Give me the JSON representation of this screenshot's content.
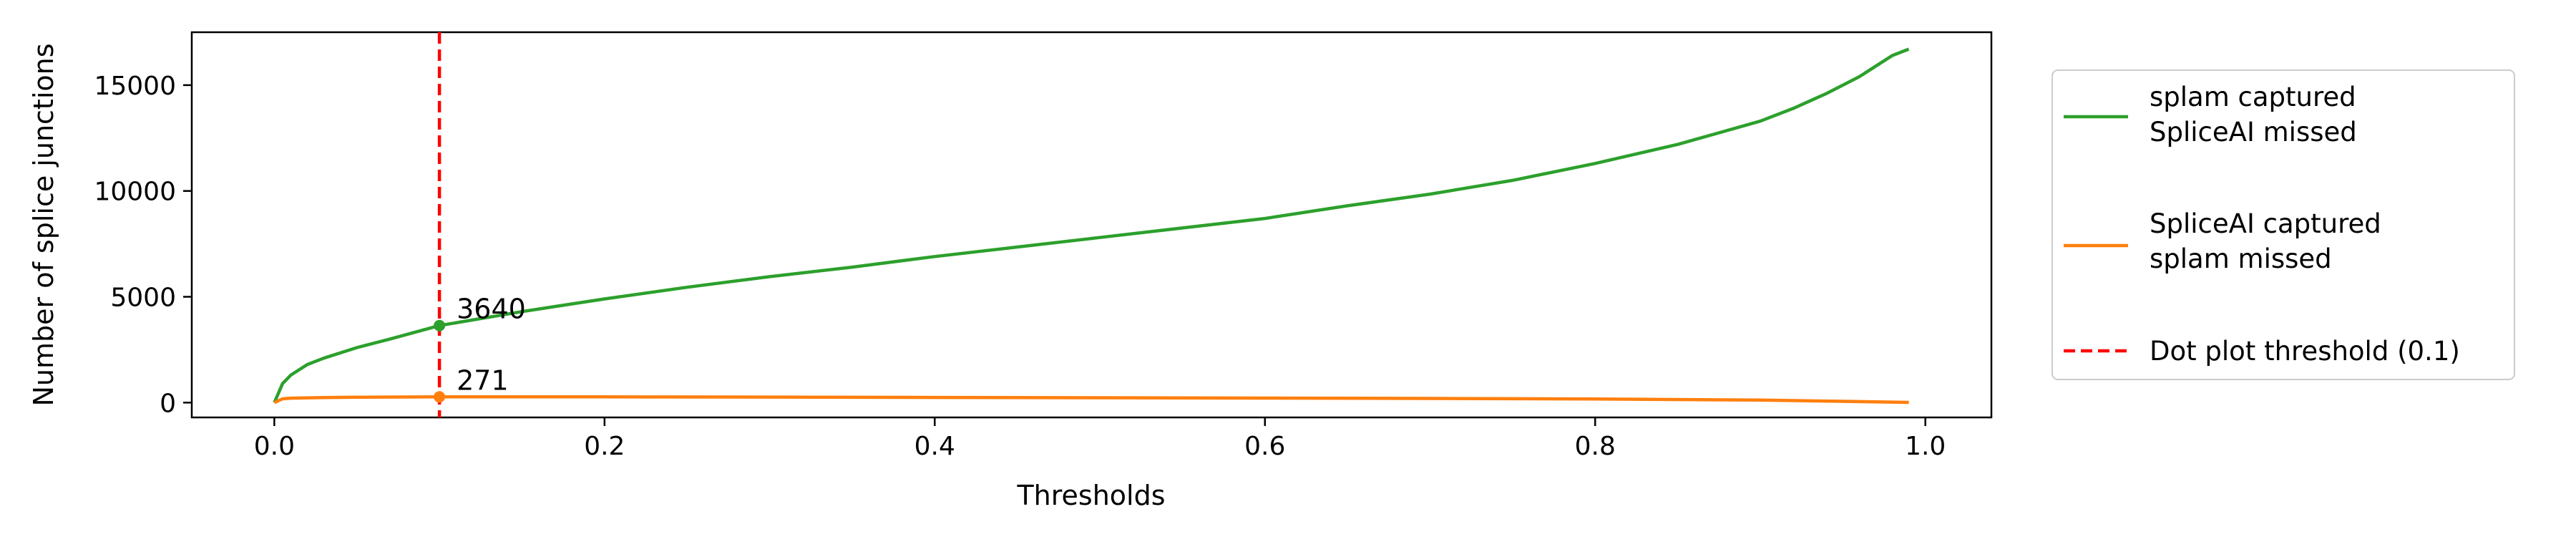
{
  "chart_data": {
    "type": "line",
    "title": "",
    "xlabel": "Thresholds",
    "ylabel": "Number of splice junctions",
    "xlim": [
      -0.05,
      1.04
    ],
    "ylim": [
      -700,
      17500
    ],
    "xticks": [
      0.0,
      0.2,
      0.4,
      0.6,
      0.8,
      1.0
    ],
    "xtick_labels": [
      "0.0",
      "0.2",
      "0.4",
      "0.6",
      "0.8",
      "1.0"
    ],
    "yticks": [
      0,
      5000,
      10000,
      15000
    ],
    "ytick_labels": [
      "0",
      "5000",
      "10000",
      "15000"
    ],
    "grid": false,
    "legend_position": "outside-right",
    "series": [
      {
        "name": "splam captured\nSpliceAI missed",
        "color": "#2ca02c",
        "x": [
          0.0,
          0.005,
          0.01,
          0.02,
          0.03,
          0.05,
          0.07,
          0.1,
          0.15,
          0.2,
          0.25,
          0.3,
          0.35,
          0.4,
          0.45,
          0.5,
          0.55,
          0.6,
          0.65,
          0.7,
          0.75,
          0.8,
          0.85,
          0.9,
          0.92,
          0.94,
          0.96,
          0.97,
          0.98,
          0.99
        ],
        "y": [
          0,
          900,
          1300,
          1800,
          2100,
          2600,
          3000,
          3640,
          4300,
          4900,
          5450,
          5950,
          6400,
          6900,
          7350,
          7800,
          8250,
          8700,
          9300,
          9850,
          10500,
          11300,
          12200,
          13300,
          13900,
          14600,
          15400,
          15900,
          16400,
          16700
        ]
      },
      {
        "name": "SpliceAI captured\nsplam missed",
        "color": "#ff7f0e",
        "x": [
          0.0,
          0.005,
          0.01,
          0.03,
          0.05,
          0.1,
          0.15,
          0.2,
          0.3,
          0.4,
          0.5,
          0.6,
          0.7,
          0.8,
          0.9,
          0.95,
          0.99
        ],
        "y": [
          0,
          180,
          210,
          240,
          255,
          271,
          275,
          270,
          260,
          245,
          230,
          215,
          195,
          170,
          120,
          60,
          10
        ]
      }
    ],
    "threshold_line": {
      "name": "Dot plot threshold (0.1)",
      "x": 0.1,
      "color": "#ff0000",
      "style": "dashed"
    },
    "annotations": [
      {
        "text": "3640",
        "x": 0.1,
        "y": 3640
      },
      {
        "text": "271",
        "x": 0.1,
        "y": 271
      }
    ]
  },
  "legend": {
    "entries": [
      {
        "lines": [
          "splam captured",
          "SpliceAI missed"
        ],
        "color": "#2ca02c",
        "style": "solid"
      },
      {
        "lines": [
          "SpliceAI captured",
          "splam missed"
        ],
        "color": "#ff7f0e",
        "style": "solid"
      },
      {
        "lines": [
          "Dot plot threshold (0.1)"
        ],
        "color": "#ff0000",
        "style": "dashed"
      }
    ]
  }
}
